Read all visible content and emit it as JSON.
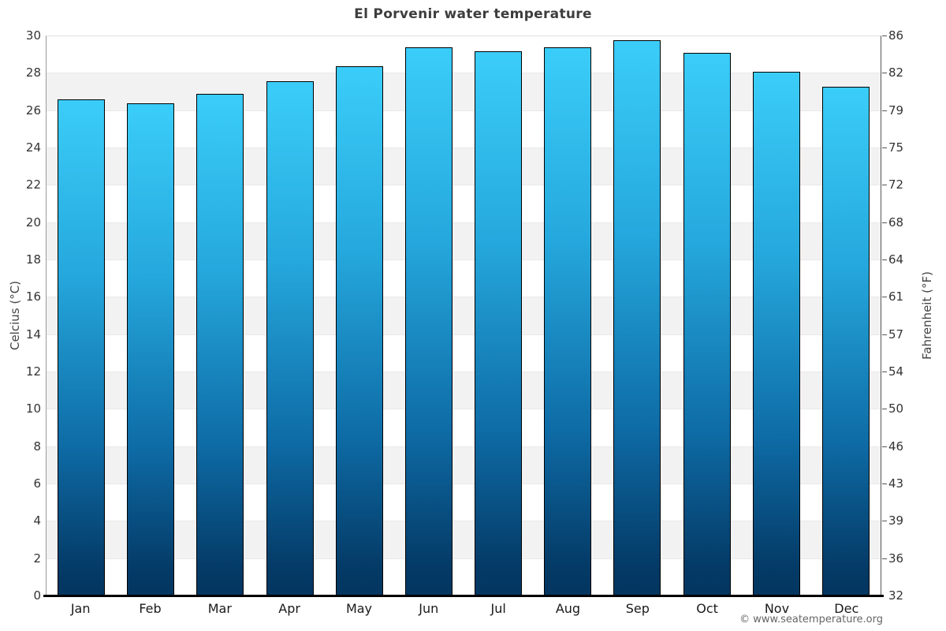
{
  "chart_data": {
    "type": "bar",
    "title": "El Porvenir water temperature",
    "categories": [
      "Jan",
      "Feb",
      "Mar",
      "Apr",
      "May",
      "Jun",
      "Jul",
      "Aug",
      "Sep",
      "Oct",
      "Nov",
      "Dec"
    ],
    "values": [
      26.6,
      26.4,
      26.9,
      27.6,
      28.4,
      29.4,
      29.2,
      29.4,
      29.8,
      29.1,
      28.1,
      27.3
    ],
    "value_unit": "°C",
    "ylabel_left": "Celcius (°C)",
    "ylabel_right": "Fahrenheit (°F)",
    "ylim": [
      0,
      30
    ],
    "celsius_ticks": [
      30,
      28,
      26,
      24,
      22,
      20,
      18,
      16,
      14,
      12,
      10,
      8,
      6,
      4,
      2,
      0
    ],
    "fahrenheit_ticks": [
      86,
      82,
      79,
      75,
      72,
      68,
      64,
      61,
      57,
      54,
      50,
      46,
      43,
      39,
      36,
      32
    ],
    "grid": "alternating horizontal bands every 2°C (white / light gray)",
    "legend": "none"
  },
  "footer": {
    "attribution": "© www.seatemperature.org"
  },
  "colors": {
    "bar_gradient_top": "#3bcdf9",
    "bar_gradient_bottom": "#033660",
    "bar_border": "#000000",
    "band_gray": "#f2f2f2",
    "band_white": "#ffffff",
    "title_text": "#3d3d3d",
    "tick_text": "#333333",
    "axis_title_text": "#444444",
    "baseline": "#000000",
    "attribution_text": "#666666"
  }
}
